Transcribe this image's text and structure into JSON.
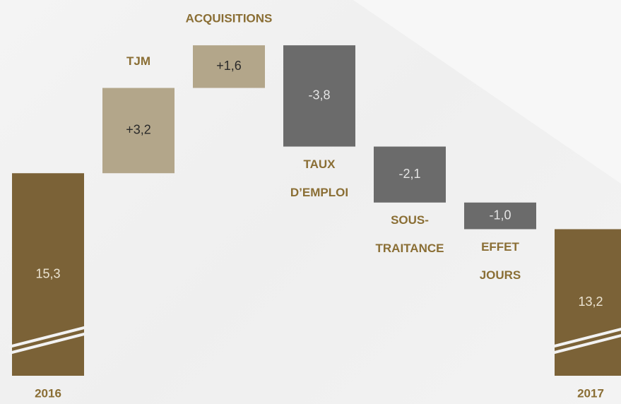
{
  "chart_data": {
    "type": "waterfall",
    "categories": [
      [
        "2016"
      ],
      [
        "TJM"
      ],
      [
        "ACQUISITIONS"
      ],
      [
        "TAUX",
        "D’EMPLOI"
      ],
      [
        "SOUS-",
        "TRAITANCE"
      ],
      [
        "EFFET",
        "JOURS"
      ],
      [
        "2017"
      ]
    ],
    "values": [
      15.3,
      3.2,
      1.6,
      -3.8,
      -2.1,
      -1.0,
      13.2
    ],
    "value_labels": [
      "15,3",
      "+3,2",
      "+1,6",
      "-3,8",
      "-2,1",
      "-1,0",
      "13,2"
    ],
    "colors": [
      "#7b6237",
      "#b3a68a",
      "#b3a68a",
      "#6b6b6b",
      "#6b6b6b",
      "#6b6b6b",
      "#7b6237"
    ],
    "ylim": [
      7.7,
      21.8
    ]
  }
}
